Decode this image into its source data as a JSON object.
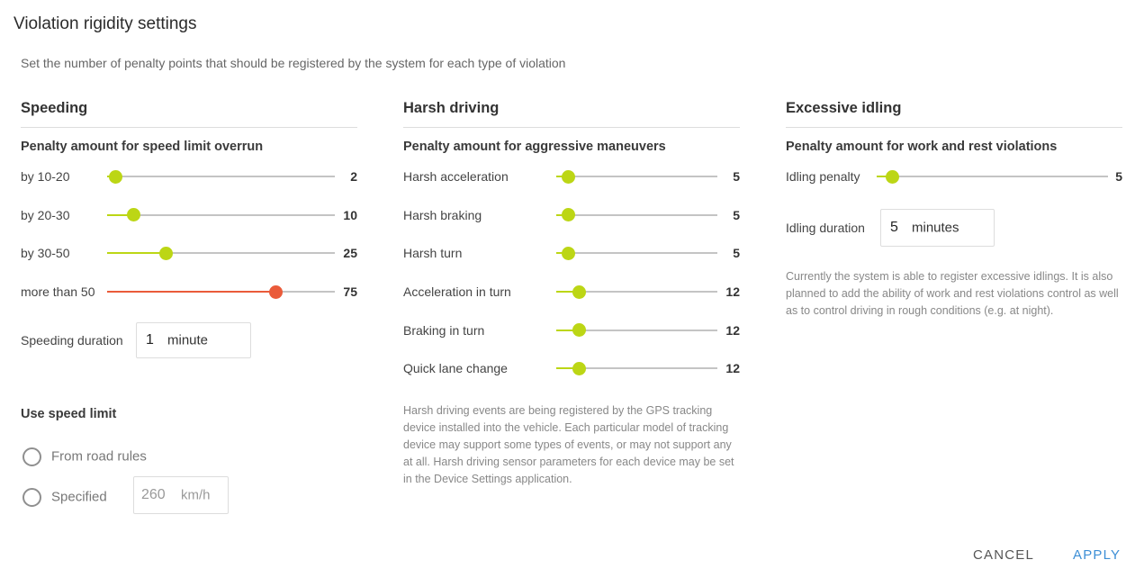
{
  "dialog": {
    "title": "Violation rigidity settings",
    "subtitle": "Set the number of penalty points that should be registered by the system for each type of violation"
  },
  "colors": {
    "accent": "#bcd615",
    "danger": "#ea5b3a",
    "track": "#c4c4c4",
    "link": "#3d8fd6"
  },
  "slider_max": 100,
  "speeding": {
    "header": "Speeding",
    "section": "Penalty amount for speed limit overrun",
    "rows": [
      {
        "label": "by 10-20",
        "value": 2,
        "display": "2",
        "level": "normal"
      },
      {
        "label": "by 20-30",
        "value": 10,
        "display": "10",
        "level": "normal"
      },
      {
        "label": "by 30-50",
        "value": 25,
        "display": "25",
        "level": "normal"
      },
      {
        "label": "more than 50",
        "value": 75,
        "display": "75",
        "level": "high"
      }
    ],
    "duration": {
      "label": "Speeding duration",
      "value": "1",
      "unit": "minute"
    },
    "use_speed_limit": {
      "header": "Use speed limit",
      "options": [
        "From road rules",
        "Specified"
      ],
      "specified_value": "260",
      "specified_unit": "km/h"
    }
  },
  "harsh": {
    "header": "Harsh driving",
    "section": "Penalty amount for aggressive maneuvers",
    "rows": [
      {
        "label": "Harsh acceleration",
        "value": 5,
        "display": "5",
        "level": "normal"
      },
      {
        "label": "Harsh braking",
        "value": 5,
        "display": "5",
        "level": "normal"
      },
      {
        "label": "Harsh turn",
        "value": 5,
        "display": "5",
        "level": "normal"
      },
      {
        "label": "Acceleration in turn",
        "value": 12,
        "display": "12",
        "level": "normal"
      },
      {
        "label": "Braking in turn",
        "value": 12,
        "display": "12",
        "level": "normal"
      },
      {
        "label": "Quick lane change",
        "value": 12,
        "display": "12",
        "level": "normal"
      }
    ],
    "note": "Harsh driving events are being registered by the GPS tracking device installed into the vehicle. Each particular model of tracking device may support some types of events, or may not support any at all. Harsh driving sensor parameters for each device may be set in the Device Settings application."
  },
  "idling": {
    "header": "Excessive idling",
    "section": "Penalty amount for work and rest violations",
    "rows": [
      {
        "label": "Idling penalty",
        "value": 5,
        "display": "5",
        "level": "normal"
      }
    ],
    "duration": {
      "label": "Idling duration",
      "value": "5",
      "unit": "minutes"
    },
    "note": "Currently the system is able to register excessive idlings. It is also planned to add the ability of work and rest violations control as well as to control driving in rough conditions (e.g. at night)."
  },
  "buttons": {
    "cancel": "CANCEL",
    "apply": "APPLY"
  }
}
